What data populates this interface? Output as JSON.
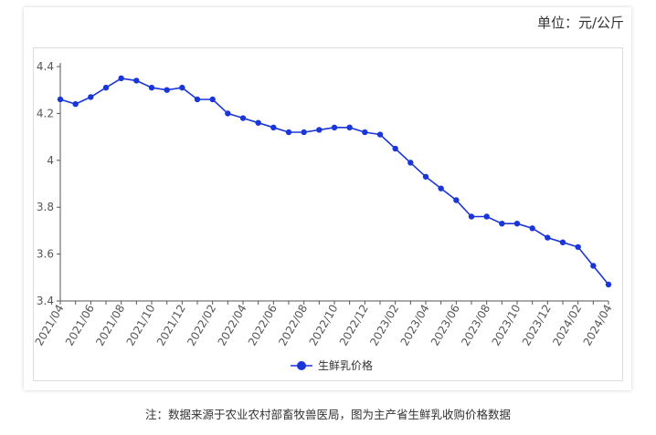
{
  "unit_label": "单位：元/公斤",
  "footnote": "注：数据来源于农业农村部畜牧兽医局，图为主产省生鲜乳收购价格数据",
  "colors": {
    "series": "#1a36d8",
    "axis": "#555555",
    "grid": "#e0e0e0"
  },
  "chart_data": {
    "type": "line",
    "title": "",
    "xlabel": "",
    "ylabel": "",
    "ylim": [
      3.4,
      4.4
    ],
    "yticks": [
      3.4,
      3.6,
      3.8,
      4,
      4.2,
      4.4
    ],
    "ytick_labels": [
      "3.4",
      "3.6",
      "3.8",
      "4",
      "4.2",
      "4.4"
    ],
    "grid": false,
    "legend_position": "bottom",
    "x": [
      "2021/04",
      "2021/05",
      "2021/06",
      "2021/07",
      "2021/08",
      "2021/09",
      "2021/10",
      "2021/11",
      "2021/12",
      "2022/01",
      "2022/02",
      "2022/03",
      "2022/04",
      "2022/05",
      "2022/06",
      "2022/07",
      "2022/08",
      "2022/09",
      "2022/10",
      "2022/11",
      "2022/12",
      "2023/01",
      "2023/02",
      "2023/03",
      "2023/04",
      "2023/05",
      "2023/06",
      "2023/07",
      "2023/08",
      "2023/09",
      "2023/10",
      "2023/11",
      "2023/12",
      "2024/01",
      "2024/02",
      "2024/03",
      "2024/04"
    ],
    "xtick_labels": [
      "2021/04",
      "2021/06",
      "2021/08",
      "2021/10",
      "2021/12",
      "2022/02",
      "2022/04",
      "2022/06",
      "2022/08",
      "2022/10",
      "2022/12",
      "2023/02",
      "2023/04",
      "2023/06",
      "2023/08",
      "2023/10",
      "2023/12",
      "2024/02",
      "2024/04"
    ],
    "series": [
      {
        "name": "生鲜乳价格",
        "values": [
          4.26,
          4.24,
          4.27,
          4.31,
          4.35,
          4.34,
          4.31,
          4.3,
          4.31,
          4.26,
          4.26,
          4.2,
          4.18,
          4.16,
          4.14,
          4.12,
          4.12,
          4.13,
          4.14,
          4.14,
          4.12,
          4.11,
          4.05,
          3.99,
          3.93,
          3.88,
          3.83,
          3.76,
          3.76,
          3.73,
          3.73,
          3.71,
          3.67,
          3.65,
          3.63,
          3.55,
          3.47
        ]
      }
    ]
  }
}
